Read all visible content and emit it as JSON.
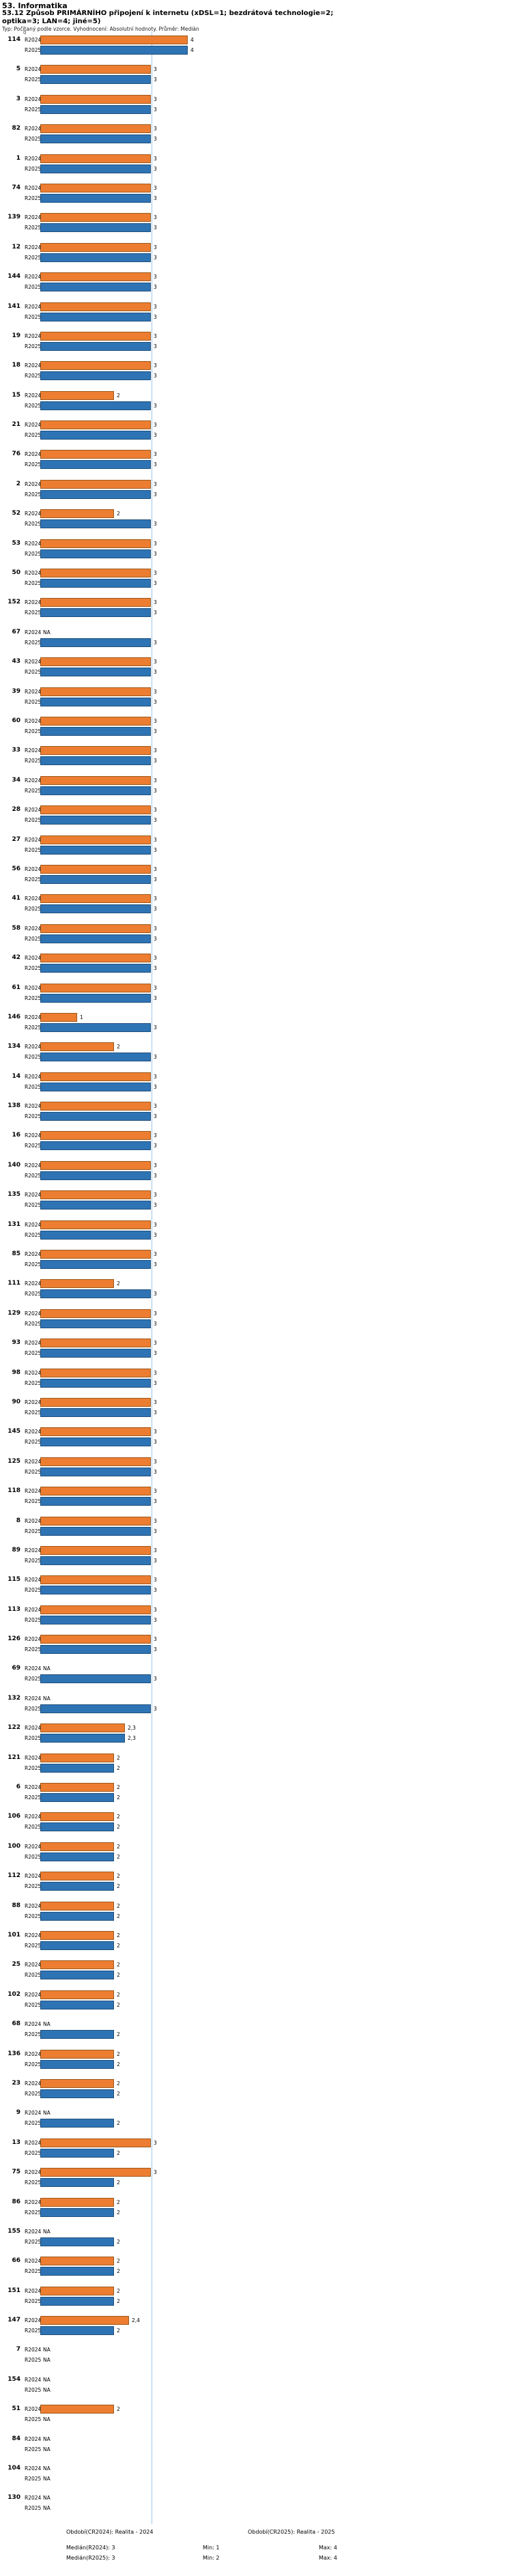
{
  "header": {
    "line1": "53. Informatika",
    "line2": "53.12 Způsob PRIMÁRNÍHO připojení k internetu (xDSL=1; bezdrátová technologie=2;\noptika=3; LAN=4; jiné=5)",
    "line3": "Typ: Počítaný podle vzorce. Vyhodnocení: Absolutní hodnoty. Průměr: Medián"
  },
  "chart_data": {
    "type": "bar",
    "orientation": "horizontal",
    "title": "53.12 Způsob PRIMÁRNÍHO připojení k internetu (xDSL=1; bezdrátová technologie=2; optika=3; LAN=4; jiné=5)",
    "x_axis": {
      "origin_label": "0",
      "min": 0,
      "max": 4,
      "gridline_at": 3
    },
    "na_label": "NA",
    "categories": [
      "114",
      "5",
      "3",
      "82",
      "1",
      "74",
      "139",
      "12",
      "144",
      "141",
      "19",
      "18",
      "15",
      "21",
      "76",
      "2",
      "52",
      "53",
      "50",
      "152",
      "67",
      "43",
      "39",
      "60",
      "33",
      "34",
      "28",
      "27",
      "56",
      "41",
      "58",
      "42",
      "61",
      "146",
      "134",
      "14",
      "138",
      "16",
      "140",
      "135",
      "131",
      "85",
      "111",
      "129",
      "93",
      "98",
      "90",
      "145",
      "125",
      "118",
      "8",
      "89",
      "115",
      "113",
      "126",
      "69",
      "132",
      "122",
      "121",
      "6",
      "106",
      "100",
      "112",
      "88",
      "101",
      "25",
      "102",
      "68",
      "136",
      "23",
      "9",
      "13",
      "75",
      "86",
      "155",
      "66",
      "151",
      "147",
      "7",
      "154",
      "51",
      "84",
      "104",
      "130"
    ],
    "series": [
      {
        "name": "R2024",
        "period": "Realita - 2024",
        "color": "#ED7D31",
        "border": "#9C5A1D",
        "values": [
          4,
          3,
          3,
          3,
          3,
          3,
          3,
          3,
          3,
          3,
          3,
          3,
          2,
          3,
          3,
          3,
          2,
          3,
          3,
          3,
          "NA",
          3,
          3,
          3,
          3,
          3,
          3,
          3,
          3,
          3,
          3,
          3,
          3,
          1,
          2,
          3,
          3,
          3,
          3,
          3,
          3,
          3,
          2,
          3,
          3,
          3,
          3,
          3,
          3,
          3,
          3,
          3,
          3,
          3,
          3,
          "NA",
          "NA",
          2.3,
          2,
          2,
          2,
          2,
          2,
          2,
          2,
          2,
          2,
          "NA",
          2,
          2,
          "NA",
          3,
          3,
          2,
          "NA",
          2,
          2,
          2.4,
          "NA",
          "NA",
          2,
          "NA",
          "NA",
          "NA"
        ]
      },
      {
        "name": "R2025",
        "period": "Realita - 2025",
        "color": "#2E74B5",
        "border": "#1F4E79",
        "values": [
          4,
          3,
          3,
          3,
          3,
          3,
          3,
          3,
          3,
          3,
          3,
          3,
          3,
          3,
          3,
          3,
          3,
          3,
          3,
          3,
          3,
          3,
          3,
          3,
          3,
          3,
          3,
          3,
          3,
          3,
          3,
          3,
          3,
          3,
          3,
          3,
          3,
          3,
          3,
          3,
          3,
          3,
          3,
          3,
          3,
          3,
          3,
          3,
          3,
          3,
          3,
          3,
          3,
          3,
          3,
          3,
          3,
          2.3,
          2,
          2,
          2,
          2,
          2,
          2,
          2,
          2,
          2,
          2,
          2,
          2,
          2,
          2,
          2,
          2,
          2,
          2,
          2,
          2,
          "NA",
          "NA",
          "NA",
          "NA",
          "NA",
          "NA"
        ]
      }
    ],
    "summary": {
      "median_r2024": 3,
      "min_r2024": 1,
      "max_r2024": 4,
      "median_r2025": 3,
      "min_r2025": 2,
      "max_r2025": 4
    }
  },
  "legend": {
    "period1": "Období(CR2024): Realita - 2024",
    "period2": "Období(CR2025): Realita - 2025",
    "median1": "Medián(R2024): 3",
    "min1": "Min: 1",
    "max1": "Max: 4",
    "median2": "Medián(R2025): 3",
    "min2": "Min: 2",
    "max2": "Max: 4"
  }
}
